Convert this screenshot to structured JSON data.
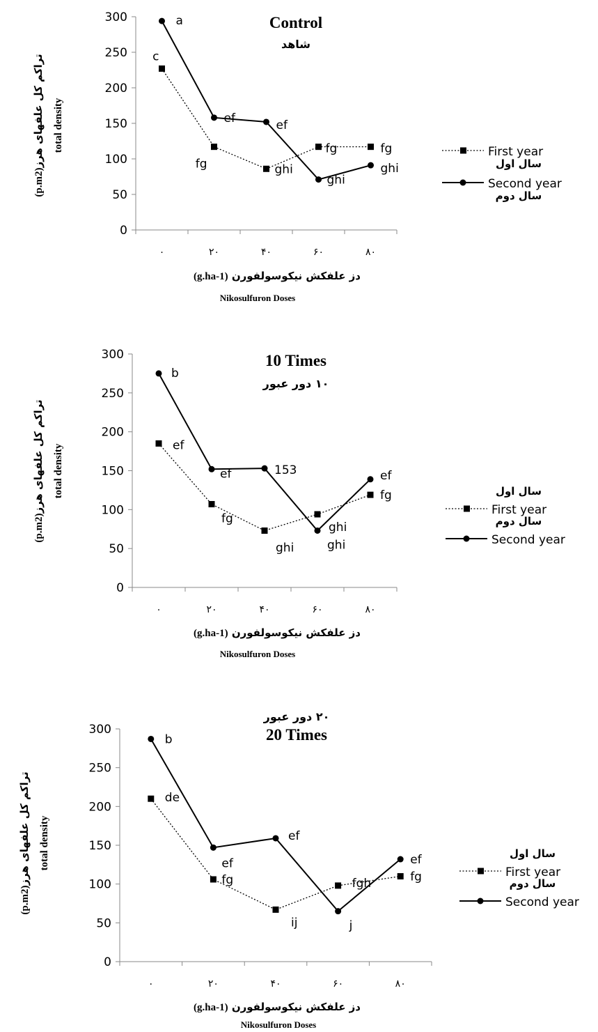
{
  "chart_data": [
    {
      "type": "line",
      "title": "Control",
      "subtitle": "شاهد",
      "categories": [
        "۰",
        "۲۰",
        "۴۰",
        "۶۰",
        "۸۰"
      ],
      "ylim": [
        0,
        300
      ],
      "yticks": [
        "0",
        "50",
        "100",
        "150",
        "200",
        "250",
        "300"
      ],
      "ylabel_fa": "تراکم کل علفهای هرز",
      "ylabel_unit": "(p.m2)",
      "ylabel_en": "total density",
      "xlabel_fa": "دز علفکش نیکوسولفورن",
      "xlabel_unit": "(g.ha-1)",
      "xlabel_en": "Nikosulfuron Doses",
      "legend_placement": "right",
      "series": [
        {
          "name": "First year",
          "name_fa": "سال اول",
          "style": "dotted",
          "marker": "square",
          "values": [
            227,
            117,
            86,
            117,
            117
          ],
          "labels": [
            "c",
            "fg",
            "ghi",
            "fg",
            "fg"
          ]
        },
        {
          "name": "Second year",
          "name_fa": "سال دوم",
          "style": "solid",
          "marker": "circle",
          "values": [
            294,
            158,
            152,
            71,
            91
          ],
          "labels": [
            "a",
            "ef",
            "ef",
            "ghi",
            "ghi"
          ]
        }
      ]
    },
    {
      "type": "line",
      "title": "10 Times",
      "subtitle": "۱۰ دور عبور",
      "categories": [
        "۰",
        "۲۰",
        "۴۰",
        "۶۰",
        "۸۰"
      ],
      "ylim": [
        0,
        300
      ],
      "yticks": [
        "0",
        "50",
        "100",
        "150",
        "200",
        "250",
        "300"
      ],
      "ylabel_fa": "تراکم کل علفهای هرز",
      "ylabel_unit": "(p.m2)",
      "ylabel_en": "total density",
      "xlabel_fa": "دز علفکش نیکوسولفورن",
      "xlabel_unit": "(g.ha-1)",
      "xlabel_en": "Nikosulfuron Doses",
      "legend_placement": "right",
      "series": [
        {
          "name": "First year",
          "name_fa": "سال اول",
          "style": "dotted",
          "marker": "square",
          "values": [
            185,
            107,
            73,
            94,
            119
          ],
          "labels": [
            "ef",
            "fg",
            "ghi",
            "ghi",
            "fg"
          ]
        },
        {
          "name": "Second year",
          "name_fa": "سال دوم",
          "style": "solid",
          "marker": "circle",
          "values": [
            275,
            152,
            153,
            73,
            139
          ],
          "labels": [
            "b",
            "ef",
            "153",
            "ghi",
            "ef"
          ]
        }
      ]
    },
    {
      "type": "line",
      "title": "20 Times",
      "subtitle": "۲۰ دور عبور",
      "categories": [
        "۰",
        "۲۰",
        "۴۰",
        "۶۰",
        "۸۰"
      ],
      "ylim": [
        0,
        300
      ],
      "yticks": [
        "0",
        "50",
        "100",
        "150",
        "200",
        "250",
        "300"
      ],
      "ylabel_fa": "تراکم کل علفهای هرز",
      "ylabel_unit": "(p.m2)",
      "ylabel_en": "total density",
      "xlabel_fa": "دز علفکش نیکوسولفورن",
      "xlabel_unit": "(g.ha-1)",
      "xlabel_en": "Nikosulfuron Doses",
      "legend_placement": "right",
      "series": [
        {
          "name": "First year",
          "name_fa": "سال اول",
          "style": "dotted",
          "marker": "square",
          "values": [
            210,
            106,
            67,
            98,
            110
          ],
          "labels": [
            "de",
            "fg",
            "ij",
            "fgh",
            "fg"
          ]
        },
        {
          "name": "Second year",
          "name_fa": "سال دوم",
          "style": "solid",
          "marker": "circle",
          "values": [
            287,
            147,
            159,
            65,
            132
          ],
          "labels": [
            "b",
            "ef",
            "ef",
            "j",
            "ef"
          ]
        }
      ]
    }
  ]
}
